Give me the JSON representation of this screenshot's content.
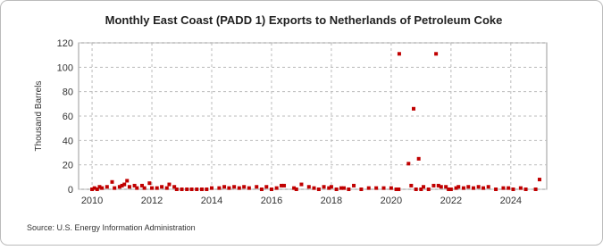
{
  "chart_data": {
    "type": "scatter",
    "title": "Monthly East Coast (PADD 1) Exports to Netherlands of Petroleum Coke",
    "y_label": "Thousand Barrels",
    "source": "Source: U.S. Energy Information Administration",
    "color": "#c00000",
    "grid": true,
    "xlim": [
      2009.55,
      2025.2
    ],
    "ylim": [
      0,
      120
    ],
    "xticks": [
      2010,
      2012,
      2014,
      2016,
      2018,
      2020,
      2022,
      2024
    ],
    "yticks": [
      0,
      20,
      40,
      60,
      80,
      100,
      120
    ],
    "x": [
      2010.0,
      2010.08,
      2010.17,
      2010.25,
      2010.33,
      2010.5,
      2010.67,
      2010.75,
      2010.92,
      2011.0,
      2011.08,
      2011.17,
      2011.25,
      2011.42,
      2011.5,
      2011.67,
      2011.75,
      2011.92,
      2012.0,
      2012.17,
      2012.33,
      2012.5,
      2012.58,
      2012.75,
      2012.83,
      2013.0,
      2013.17,
      2013.33,
      2013.5,
      2013.67,
      2013.83,
      2014.0,
      2014.25,
      2014.42,
      2014.58,
      2014.75,
      2014.92,
      2015.08,
      2015.25,
      2015.5,
      2015.67,
      2015.83,
      2016.0,
      2016.17,
      2016.33,
      2016.42,
      2016.75,
      2016.83,
      2017.0,
      2017.25,
      2017.42,
      2017.58,
      2017.75,
      2017.92,
      2018.0,
      2018.17,
      2018.33,
      2018.42,
      2018.58,
      2018.75,
      2019.0,
      2019.25,
      2019.5,
      2019.75,
      2020.0,
      2020.17,
      2020.25,
      2020.27,
      2020.58,
      2020.67,
      2020.75,
      2020.83,
      2020.92,
      2021.0,
      2021.08,
      2021.25,
      2021.42,
      2021.5,
      2021.58,
      2021.67,
      2021.83,
      2021.92,
      2022.0,
      2022.17,
      2022.25,
      2022.42,
      2022.58,
      2022.75,
      2022.92,
      2023.08,
      2023.25,
      2023.5,
      2023.75,
      2023.92,
      2024.08,
      2024.33,
      2024.5,
      2024.83,
      2024.96
    ],
    "values": [
      0,
      1,
      0,
      2,
      1,
      2,
      6,
      1,
      2,
      3,
      4,
      7,
      2,
      3,
      1,
      3,
      1,
      5,
      1,
      1,
      2,
      1,
      4,
      2,
      0,
      0,
      0,
      0,
      0,
      0,
      0,
      1,
      1,
      2,
      1,
      2,
      1,
      2,
      1,
      2,
      0,
      2,
      0,
      1,
      3,
      3,
      1,
      0,
      4,
      2,
      1,
      0,
      2,
      1,
      2,
      0,
      1,
      1,
      0,
      3,
      0,
      1,
      1,
      1,
      1,
      0,
      0,
      111,
      21,
      3,
      66,
      0,
      25,
      0,
      2,
      0,
      3,
      111,
      3,
      2,
      2,
      0,
      0,
      1,
      2,
      1,
      2,
      1,
      2,
      1,
      2,
      0,
      1,
      1,
      0,
      1,
      0,
      0,
      8
    ]
  }
}
